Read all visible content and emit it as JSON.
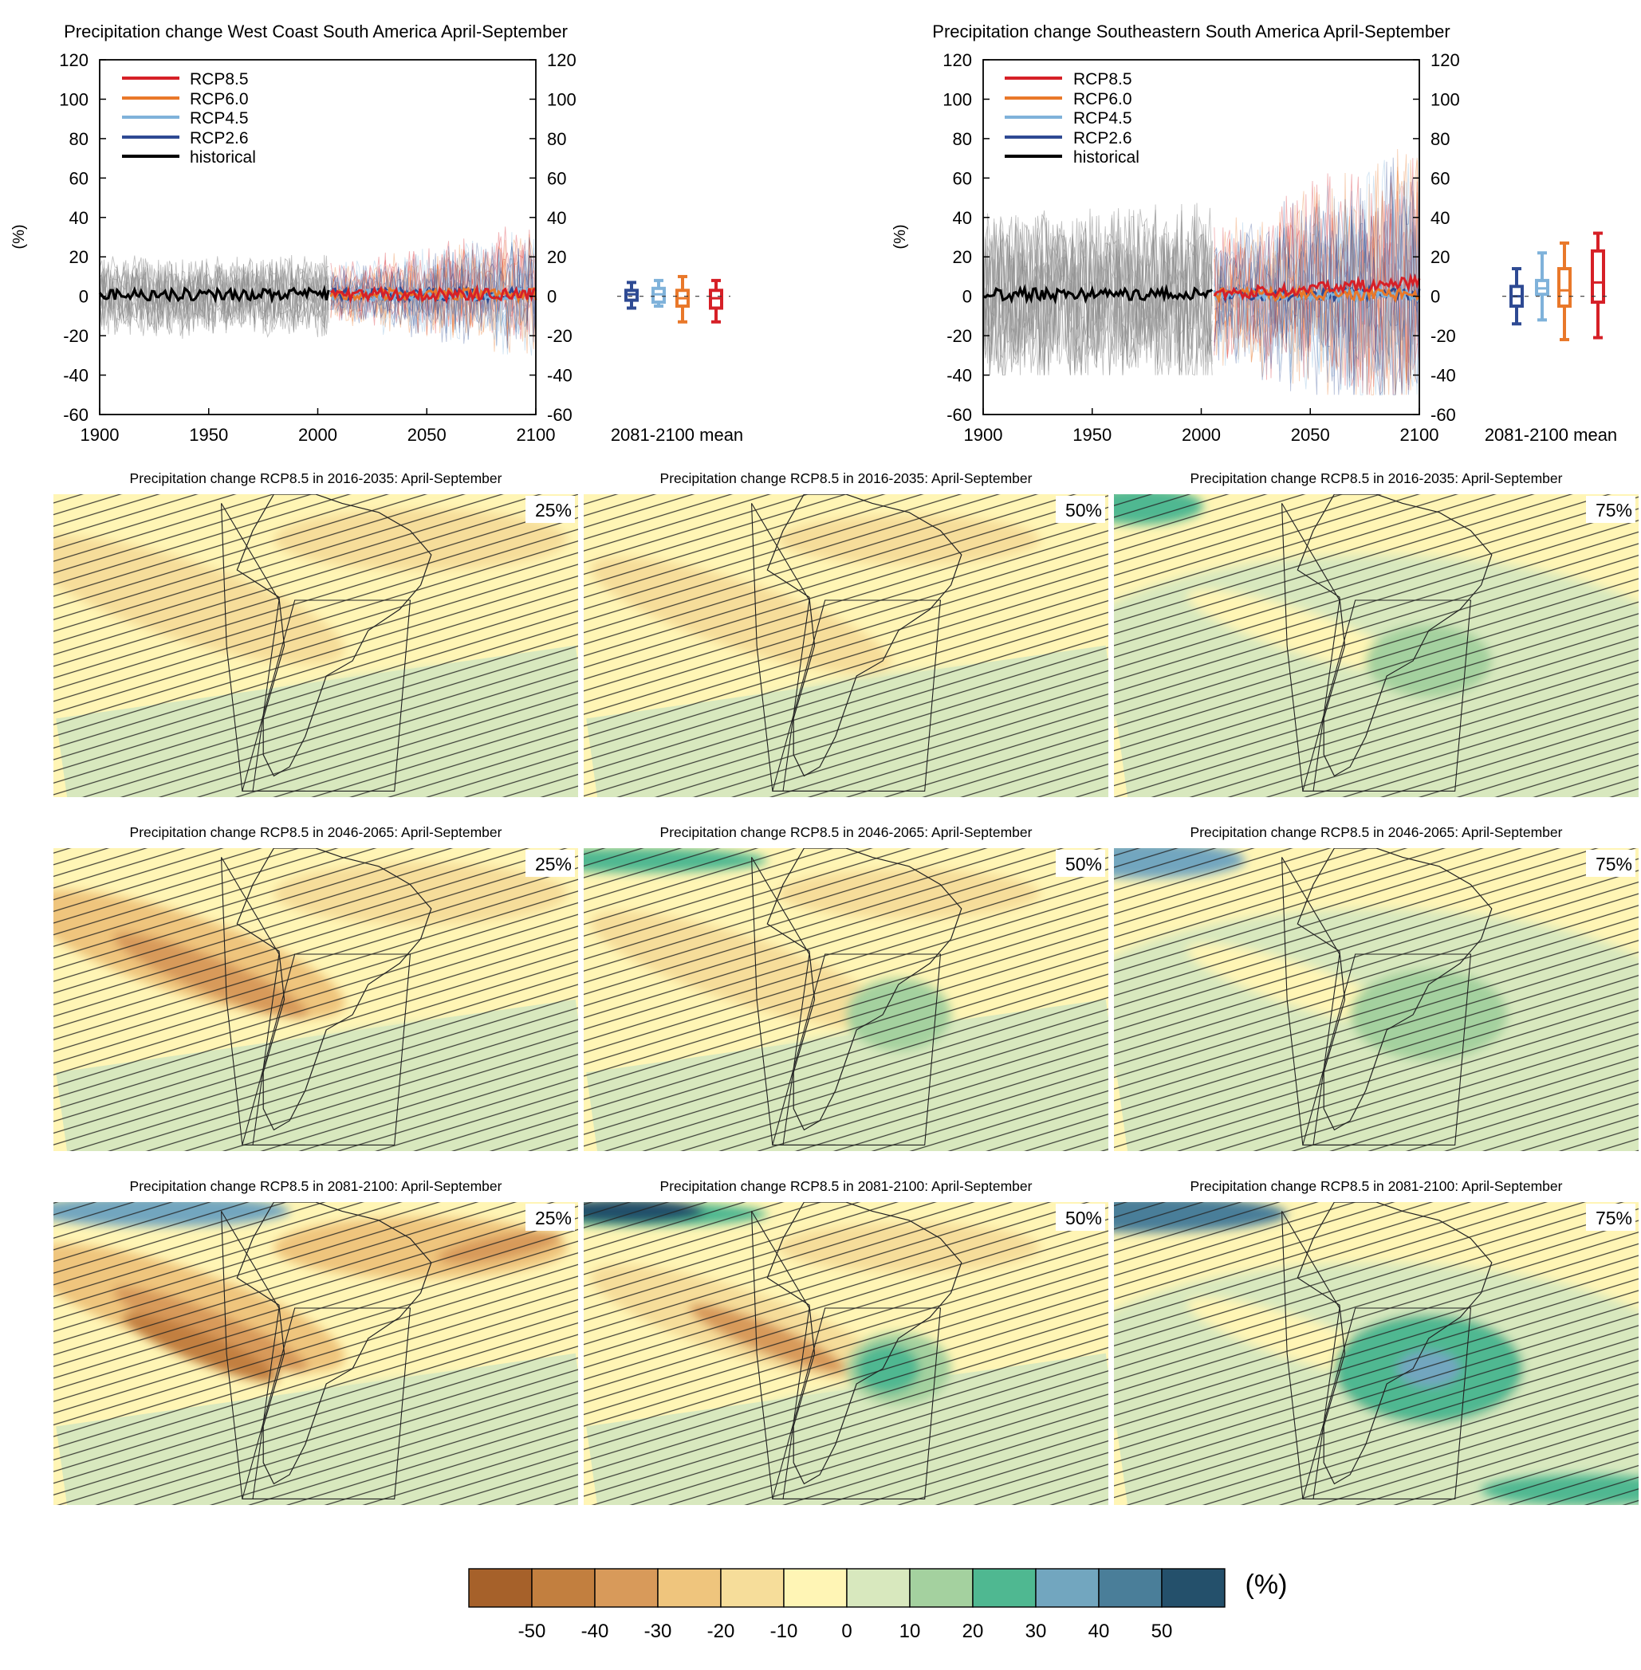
{
  "colors": {
    "rcp85": "#d62027",
    "rcp60": "#e9782a",
    "rcp45": "#7fb2da",
    "rcp26": "#2e4a93",
    "historical": "#000000",
    "historical_spread": "#8c8c8c",
    "color_scale": [
      "#a6612a",
      "#c27f3f",
      "#d89a5a",
      "#efc57d",
      "#f6dd9a",
      "#fff5b5",
      "#d8e8be",
      "#a4d19f",
      "#4fb891",
      "#72a6bf",
      "#4a7e99",
      "#24506b"
    ]
  },
  "time_series": [
    {
      "title": "Precipitation change West Coast South America April-September",
      "ylabel": "(%)",
      "ylim": [
        -60,
        120
      ],
      "yticks": [
        -60,
        -40,
        -20,
        0,
        20,
        40,
        60,
        80,
        100,
        120
      ],
      "xticks": [
        1900,
        1950,
        2000,
        2050,
        2100
      ],
      "xlim": [
        1900,
        2100
      ],
      "legend": [
        "RCP8.5",
        "RCP6.0",
        "RCP4.5",
        "RCP2.6",
        "historical"
      ],
      "envelope": {
        "historical": {
          "x": [
            1900,
            2005
          ],
          "min": -22,
          "max": 22
        },
        "scenarios": {
          "x": [
            2006,
            2100
          ],
          "min": -32,
          "max": 38
        }
      },
      "box_label": "2081-2100 mean",
      "boxes": [
        {
          "scenario": "RCP2.6",
          "low": -6,
          "q1": -2,
          "median": 1,
          "q3": 3,
          "high": 7
        },
        {
          "scenario": "RCP4.5",
          "low": -5,
          "q1": -3,
          "median": 1,
          "q3": 4,
          "high": 8
        },
        {
          "scenario": "RCP6.0",
          "low": -13,
          "q1": -5,
          "median": -1,
          "q3": 3,
          "high": 10
        },
        {
          "scenario": "RCP8.5",
          "low": -13,
          "q1": -6,
          "median": -1,
          "q3": 3,
          "high": 8
        }
      ]
    },
    {
      "title": "Precipitation change Southeastern South America April-September",
      "ylabel": "(%)",
      "ylim": [
        -60,
        120
      ],
      "yticks": [
        -60,
        -40,
        -20,
        0,
        20,
        40,
        60,
        80,
        100,
        120
      ],
      "xticks": [
        1900,
        1950,
        2000,
        2050,
        2100
      ],
      "xlim": [
        1900,
        2100
      ],
      "legend": [
        "RCP8.5",
        "RCP6.0",
        "RCP4.5",
        "RCP2.6",
        "historical"
      ],
      "envelope": {
        "historical": {
          "x": [
            1900,
            2005
          ],
          "min": -40,
          "max": 60
        },
        "scenarios": {
          "x": [
            2006,
            2100
          ],
          "min": -50,
          "max": 115
        }
      },
      "box_label": "2081-2100 mean",
      "boxes": [
        {
          "scenario": "RCP2.6",
          "low": -14,
          "q1": -5,
          "median": 0,
          "q3": 5,
          "high": 14
        },
        {
          "scenario": "RCP4.5",
          "low": -12,
          "q1": 1,
          "median": 4,
          "q3": 8,
          "high": 22
        },
        {
          "scenario": "RCP6.0",
          "low": -22,
          "q1": -5,
          "median": 3,
          "q3": 14,
          "high": 27
        },
        {
          "scenario": "RCP8.5",
          "low": -21,
          "q1": -3,
          "median": 7,
          "q3": 23,
          "high": 32
        }
      ]
    }
  ],
  "maps": {
    "titles": [
      "Precipitation change RCP8.5 in 2016-2035: April-September",
      "Precipitation change RCP8.5 in 2046-2065: April-September",
      "Precipitation change RCP8.5 in 2081-2100: April-September"
    ],
    "percentiles": [
      "25%",
      "50%",
      "75%"
    ]
  },
  "colorbar": {
    "ticks": [
      "-50",
      "-40",
      "-30",
      "-20",
      "-10",
      "0",
      "10",
      "20",
      "30",
      "40",
      "50"
    ],
    "unit": "(%)"
  }
}
